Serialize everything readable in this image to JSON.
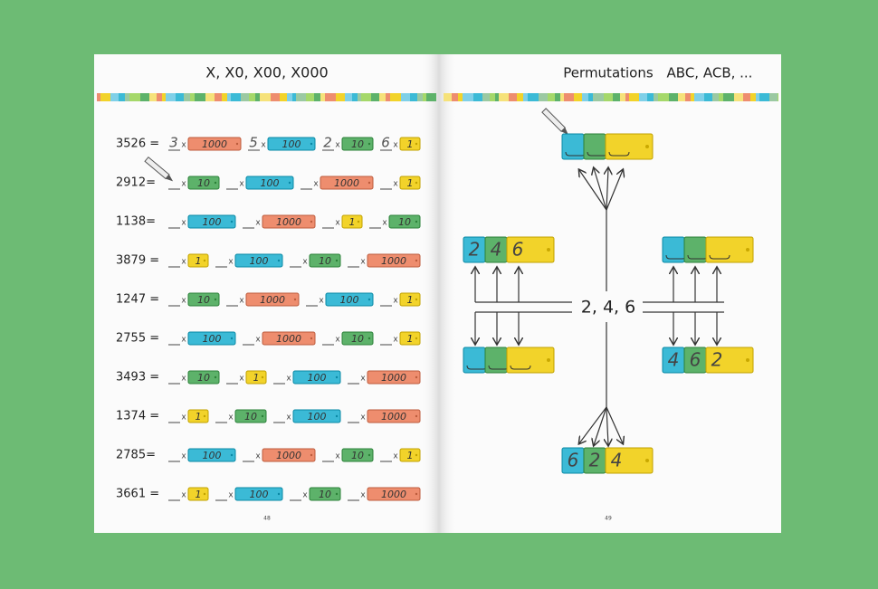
{
  "left_page": {
    "title": "X, X0, X00, X000",
    "page_number": "48",
    "times_sign": "x",
    "tile_colors": {
      "1": "#f2d32a",
      "10": "#5db26a",
      "100": "#3bbad6",
      "1000": "#ee8d6e"
    },
    "rows": [
      {
        "number": "3526 =",
        "terms": [
          {
            "digit": "3",
            "place": "1000"
          },
          {
            "digit": "5",
            "place": "100"
          },
          {
            "digit": "2",
            "place": "10"
          },
          {
            "digit": "6",
            "place": "1"
          }
        ]
      },
      {
        "number": "2912=",
        "terms": [
          {
            "place": "10"
          },
          {
            "place": "100"
          },
          {
            "place": "1000"
          },
          {
            "place": "1"
          }
        ]
      },
      {
        "number": "1138=",
        "terms": [
          {
            "place": "100"
          },
          {
            "place": "1000"
          },
          {
            "place": "1"
          },
          {
            "place": "10"
          }
        ]
      },
      {
        "number": "3879 =",
        "terms": [
          {
            "place": "1"
          },
          {
            "place": "100"
          },
          {
            "place": "10"
          },
          {
            "place": "1000"
          }
        ]
      },
      {
        "number": "1247 =",
        "terms": [
          {
            "place": "10"
          },
          {
            "place": "1000"
          },
          {
            "place": "100"
          },
          {
            "place": "1"
          }
        ]
      },
      {
        "number": "2755 =",
        "terms": [
          {
            "place": "100"
          },
          {
            "place": "1000"
          },
          {
            "place": "10"
          },
          {
            "place": "1"
          }
        ]
      },
      {
        "number": "3493 =",
        "terms": [
          {
            "place": "10"
          },
          {
            "place": "1"
          },
          {
            "place": "100"
          },
          {
            "place": "1000"
          }
        ]
      },
      {
        "number": "1374 =",
        "terms": [
          {
            "place": "1"
          },
          {
            "place": "10"
          },
          {
            "place": "100"
          },
          {
            "place": "1000"
          }
        ]
      },
      {
        "number": "2785=",
        "terms": [
          {
            "place": "100"
          },
          {
            "place": "1000"
          },
          {
            "place": "10"
          },
          {
            "place": "1"
          }
        ]
      },
      {
        "number": "3661 =",
        "terms": [
          {
            "place": "1"
          },
          {
            "place": "100"
          },
          {
            "place": "10"
          },
          {
            "place": "1000"
          }
        ]
      }
    ]
  },
  "right_page": {
    "title": "Permutations",
    "subtitle": "ABC, ACB, ...",
    "page_number": "49",
    "center_label": "2, 4, 6",
    "blocks": {
      "left_top": [
        "2",
        "4",
        "6"
      ],
      "right_bottom": [
        "4",
        "6",
        "2"
      ],
      "bottom": [
        "6",
        "2",
        "4"
      ]
    }
  }
}
